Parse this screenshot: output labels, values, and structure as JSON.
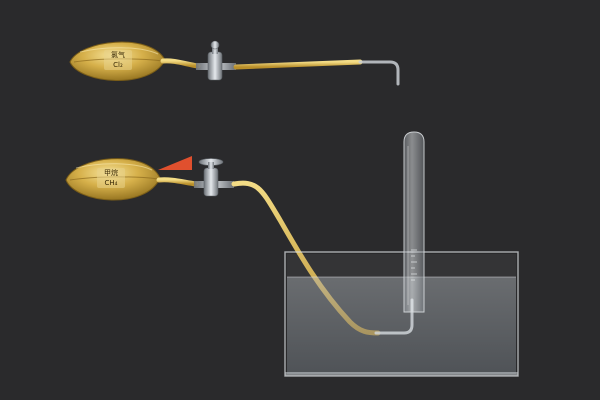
{
  "bags": [
    {
      "name_label": "氯气",
      "formula_label": "Cl₂"
    },
    {
      "name_label": "甲烷",
      "formula_label": "CH₄"
    }
  ],
  "colors": {
    "background": "#2a2a2c",
    "bag_gold": "#c9a53a",
    "tube_yellow": "#e3c35a",
    "indicator_arrow": "#e0502e",
    "glass": "#cfd4d8",
    "water": "#9aa2a8"
  },
  "icons": {
    "stopcock": "stopcock-valve-icon",
    "indicator": "red-triangle-indicator-icon"
  }
}
